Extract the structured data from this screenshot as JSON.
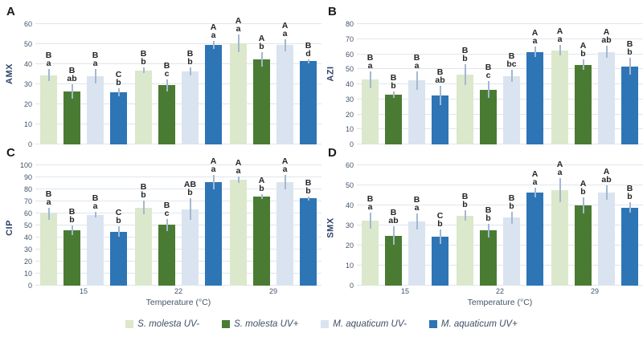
{
  "xaxis_title": "Temperature (°C)",
  "colors": {
    "s_molesta_uv_minus": "#dbe8cc",
    "s_molesta_uv_plus": "#4a7b32",
    "m_aquaticum_uv_minus": "#dae4f0",
    "m_aquaticum_uv_plus": "#2e75b6",
    "error_bar": "#a4b8cf",
    "gridline": "#dfe6ee",
    "axis_text": "#44546a"
  },
  "legend": {
    "items": [
      {
        "label": "S. molesta UV-",
        "color": "#dbe8cc"
      },
      {
        "label": "S. molesta UV+",
        "color": "#4a7b32"
      },
      {
        "label": "M. aquaticum UV-",
        "color": "#dae4f0"
      },
      {
        "label": "M. aquaticum UV+",
        "color": "#2e75b6"
      }
    ]
  },
  "chart_data": [
    {
      "type": "bar",
      "panel": "A",
      "ylabel": "AMX",
      "ylim": [
        0,
        60
      ],
      "ytick_step": 10,
      "grid": "horizontal",
      "show_xaxis": false,
      "categories": [
        "15",
        "22",
        "29"
      ],
      "series": [
        {
          "name": "S. molesta UV-",
          "color": "#dbe8cc",
          "values": [
            34.5,
            37,
            50.5
          ],
          "errors": [
            3,
            1.5,
            4.5
          ],
          "letters": [
            [
              "B",
              "a"
            ],
            [
              "B",
              "b"
            ],
            [
              "A",
              "a"
            ]
          ]
        },
        {
          "name": "S. molesta UV+",
          "color": "#4a7b32",
          "values": [
            26.5,
            29.5,
            42.5
          ],
          "errors": [
            3.5,
            3,
            3.5
          ],
          "letters": [
            [
              "B",
              "ab"
            ],
            [
              "B",
              "c"
            ],
            [
              "A",
              "b"
            ]
          ]
        },
        {
          "name": "M. aquaticum UV-",
          "color": "#dae4f0",
          "values": [
            34,
            36.5,
            49.5
          ],
          "errors": [
            3.5,
            2,
            3
          ],
          "letters": [
            [
              "B",
              "a"
            ],
            [
              "B",
              "b"
            ],
            [
              "A",
              "a"
            ]
          ]
        },
        {
          "name": "M. aquaticum UV+",
          "color": "#2e75b6",
          "values": [
            26,
            49.5,
            41.5
          ],
          "errors": [
            2,
            2,
            1
          ],
          "letters": [
            [
              "C",
              "b"
            ],
            [
              "A",
              "a"
            ],
            [
              "B",
              "d"
            ]
          ]
        }
      ]
    },
    {
      "type": "bar",
      "panel": "B",
      "ylabel": "AZI",
      "ylim": [
        0,
        80
      ],
      "ytick_step": 10,
      "grid": "horizontal",
      "show_xaxis": false,
      "categories": [
        "15",
        "22",
        "29"
      ],
      "series": [
        {
          "name": "S. molesta UV-",
          "color": "#dbe8cc",
          "values": [
            43,
            46.5,
            62.5
          ],
          "errors": [
            5.5,
            7,
            3.5
          ],
          "letters": [
            [
              "B",
              "a"
            ],
            [
              "B",
              "b"
            ],
            [
              "A",
              "a"
            ]
          ]
        },
        {
          "name": "S. molesta UV+",
          "color": "#4a7b32",
          "values": [
            33,
            36.5,
            53
          ],
          "errors": [
            2,
            5.5,
            3.5
          ],
          "letters": [
            [
              "B",
              "b"
            ],
            [
              "B",
              "c"
            ],
            [
              "A",
              "b"
            ]
          ]
        },
        {
          "name": "M. aquaticum UV-",
          "color": "#dae4f0",
          "values": [
            42.5,
            45.5,
            61.5
          ],
          "errors": [
            6,
            4,
            4
          ],
          "letters": [
            [
              "B",
              "a"
            ],
            [
              "B",
              "bc"
            ],
            [
              "A",
              "ab"
            ]
          ]
        },
        {
          "name": "M. aquaticum UV+",
          "color": "#2e75b6",
          "values": [
            32.5,
            61.5,
            52
          ],
          "errors": [
            6.5,
            3.5,
            5.5
          ],
          "letters": [
            [
              "B",
              "ab"
            ],
            [
              "A",
              "a"
            ],
            [
              "B",
              "b"
            ]
          ]
        }
      ]
    },
    {
      "type": "bar",
      "panel": "C",
      "ylabel": "CIP",
      "ylim": [
        0,
        100
      ],
      "ytick_step": 10,
      "grid": "horizontal",
      "show_xaxis": true,
      "categories": [
        "15",
        "22",
        "29"
      ],
      "series": [
        {
          "name": "S. molesta UV-",
          "color": "#dbe8cc",
          "values": [
            60,
            65,
            88
          ],
          "errors": [
            5,
            5.5,
            2.5
          ],
          "letters": [
            [
              "B",
              "a"
            ],
            [
              "B",
              "b"
            ],
            [
              "A",
              "a"
            ]
          ]
        },
        {
          "name": "S. molesta UV+",
          "color": "#4a7b32",
          "values": [
            46,
            50.5,
            74
          ],
          "errors": [
            4,
            5,
            2
          ],
          "letters": [
            [
              "B",
              "b"
            ],
            [
              "B",
              "c"
            ],
            [
              "A",
              "b"
            ]
          ]
        },
        {
          "name": "M. aquaticum UV-",
          "color": "#dae4f0",
          "values": [
            59,
            63.5,
            86
          ],
          "errors": [
            2.5,
            9,
            6
          ],
          "letters": [
            [
              "B",
              "a"
            ],
            [
              "AB",
              "b"
            ],
            [
              "A",
              "a"
            ]
          ]
        },
        {
          "name": "M. aquaticum UV+",
          "color": "#2e75b6",
          "values": [
            45,
            86,
            72.5
          ],
          "errors": [
            4.5,
            6,
            1.5
          ],
          "letters": [
            [
              "C",
              "b"
            ],
            [
              "A",
              "a"
            ],
            [
              "B",
              "b"
            ]
          ]
        }
      ]
    },
    {
      "type": "bar",
      "panel": "D",
      "ylabel": "SMX",
      "ylim": [
        0,
        60
      ],
      "ytick_step": 10,
      "grid": "horizontal",
      "show_xaxis": true,
      "categories": [
        "15",
        "22",
        "29"
      ],
      "series": [
        {
          "name": "S. molesta UV-",
          "color": "#dbe8cc",
          "values": [
            32.5,
            35,
            47.5
          ],
          "errors": [
            4,
            2.5,
            6
          ],
          "letters": [
            [
              "B",
              "a"
            ],
            [
              "B",
              "b"
            ],
            [
              "A",
              "a"
            ]
          ]
        },
        {
          "name": "S. molesta UV+",
          "color": "#4a7b32",
          "values": [
            25,
            27.5,
            40
          ],
          "errors": [
            4.5,
            3.5,
            4
          ],
          "letters": [
            [
              "B",
              "ab"
            ],
            [
              "B",
              "b"
            ],
            [
              "A",
              "b"
            ]
          ]
        },
        {
          "name": "M. aquaticum UV-",
          "color": "#dae4f0",
          "values": [
            32,
            34,
            46.5
          ],
          "errors": [
            4,
            3,
            3.5
          ],
          "letters": [
            [
              "B",
              "a"
            ],
            [
              "B",
              "b"
            ],
            [
              "A",
              "ab"
            ]
          ]
        },
        {
          "name": "M. aquaticum UV+",
          "color": "#2e75b6",
          "values": [
            24.5,
            46.5,
            39
          ],
          "errors": [
            3.5,
            2.5,
            2.5
          ],
          "letters": [
            [
              "C",
              "b"
            ],
            [
              "A",
              "a"
            ],
            [
              "B",
              "b"
            ]
          ]
        }
      ]
    }
  ]
}
